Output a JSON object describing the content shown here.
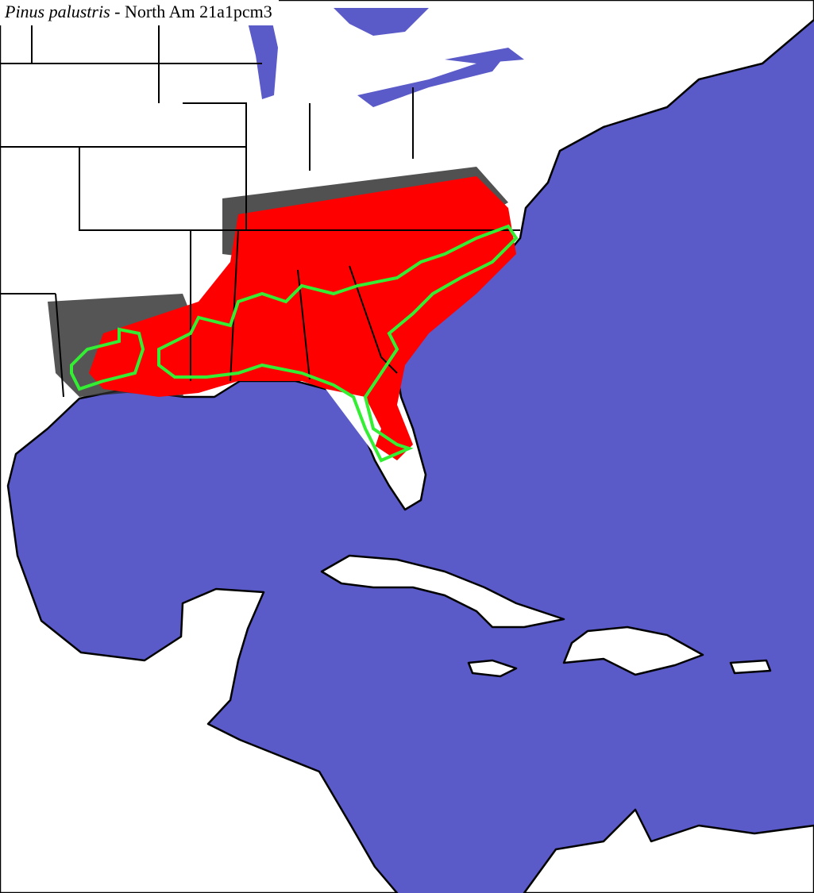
{
  "header": {
    "species": "Pinus palustris",
    "suffix": "- North Am 21a1pcm3"
  }
}
